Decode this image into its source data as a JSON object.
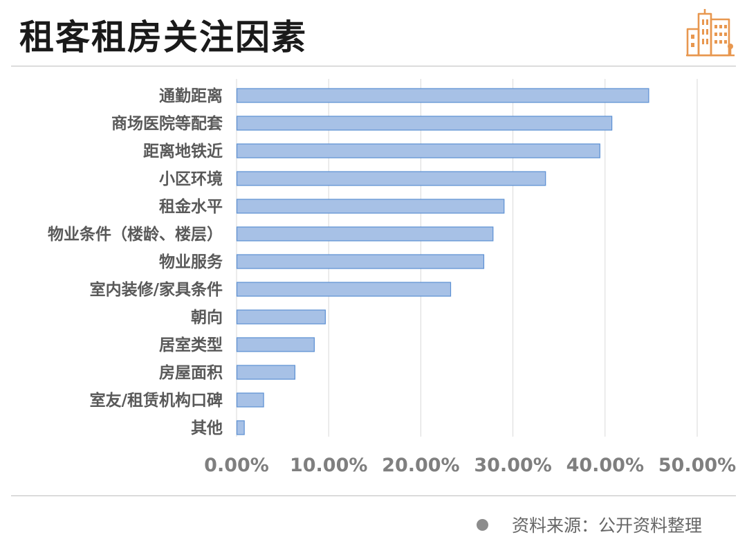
{
  "header": {
    "title": "租客租房关注因素"
  },
  "logo": {
    "icon": "city-buildings-icon",
    "color": "#e8974f"
  },
  "chart_data": {
    "type": "bar",
    "orientation": "horizontal",
    "title": "",
    "xlabel": "",
    "ylabel": "",
    "categories": [
      "通勤距离",
      "商场医院等配套",
      "距离地铁近",
      "小区环境",
      "租金水平",
      "物业条件（楼龄、楼层）",
      "物业服务",
      "室内装修/家具条件",
      "朝向",
      "居室类型",
      "房屋面积",
      "室友/租赁机构口碑",
      "其他"
    ],
    "values": [
      44.7,
      40.7,
      39.4,
      33.5,
      29.0,
      27.8,
      26.8,
      23.2,
      9.6,
      8.4,
      6.3,
      2.9,
      0.8
    ],
    "xlim": [
      0,
      50
    ],
    "xticks": [
      0,
      10,
      20,
      30,
      40,
      50
    ],
    "xtick_labels": [
      "0.00%",
      "10.00%",
      "20.00%",
      "30.00%",
      "40.00%",
      "50.00%"
    ],
    "grid": true,
    "legend": "none",
    "bar_color": "#a7c1e6",
    "bar_edge_color": "#5b8fd3"
  },
  "footer": {
    "source": "资料来源：公开资料整理"
  }
}
